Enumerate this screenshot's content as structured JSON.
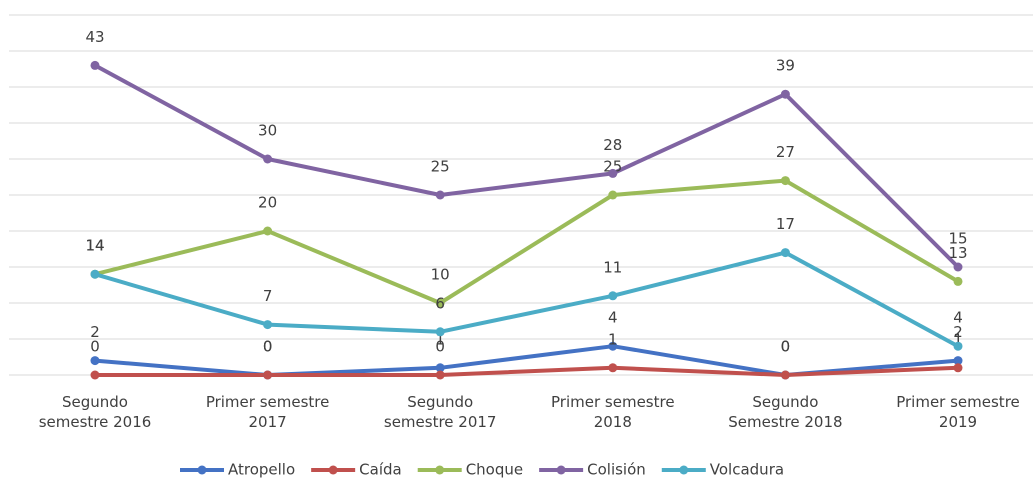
{
  "chart_data": {
    "type": "line",
    "categories": [
      "Segundo semestre 2016",
      "Primer semestre 2017",
      "Segundo semestre 2017",
      "Primer semestre 2018",
      "Segundo Semestre 2018",
      "Primer semestre 2019"
    ],
    "series": [
      {
        "name": "Atropello",
        "color": "#4472c4",
        "values": [
          2,
          0,
          1,
          4,
          0,
          2
        ]
      },
      {
        "name": "Caída",
        "color": "#c0504d",
        "values": [
          0,
          0,
          0,
          1,
          0,
          1
        ]
      },
      {
        "name": "Choque",
        "color": "#9bbb59",
        "values": [
          14,
          20,
          10,
          25,
          27,
          13
        ]
      },
      {
        "name": "Colisión",
        "color": "#8064a2",
        "values": [
          43,
          30,
          25,
          28,
          39,
          15
        ]
      },
      {
        "name": "Volcadura",
        "color": "#4bacc6",
        "values": [
          14,
          7,
          6,
          11,
          17,
          4
        ]
      }
    ],
    "ylim": [
      0,
      50
    ],
    "yticks": [
      0,
      5,
      10,
      15,
      20,
      25,
      30,
      35,
      40,
      45,
      50
    ],
    "grid": true,
    "legend": "bottom"
  }
}
